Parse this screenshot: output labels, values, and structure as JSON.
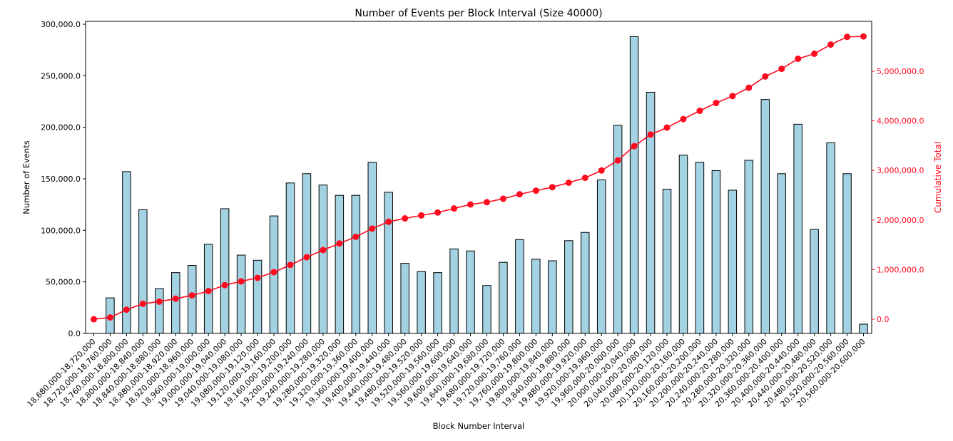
{
  "chart_data": {
    "type": "bar",
    "title": "Number of Events per Block Interval (Size 40000)",
    "xlabel": "Block Number Interval",
    "ylabel": "Number of Events",
    "y2label": "Cumulative Total",
    "ylim": [
      0,
      302800
    ],
    "y2lim": [
      -287000,
      6006000
    ],
    "yticks": [
      "0.0",
      "50,000.0",
      "100,000.0",
      "150,000.0",
      "200,000.0",
      "250,000.0",
      "300,000.0"
    ],
    "y2ticks": [
      "0.0",
      "1,000,000.0",
      "2,000,000.0",
      "3,000,000.0",
      "4,000,000.0",
      "5,000,000.0"
    ],
    "grid": false,
    "colors": {
      "bar": "#a3d2e2",
      "bar_edge": "#000000",
      "line": "#ff0a1e",
      "y2_axis": "#ff0a1e"
    },
    "categories": [
      "18,680,000-18,720,000",
      "18,720,000-18,760,000",
      "18,760,000-18,800,000",
      "18,800,000-18,840,000",
      "18,840,000-18,880,000",
      "18,880,000-18,920,000",
      "18,920,000-18,960,000",
      "18,960,000-19,000,000",
      "19,000,000-19,040,000",
      "19,040,000-19,080,000",
      "19,080,000-19,120,000",
      "19,120,000-19,160,000",
      "19,160,000-19,200,000",
      "19,200,000-19,240,000",
      "19,240,000-19,280,000",
      "19,280,000-19,320,000",
      "19,320,000-19,360,000",
      "19,360,000-19,400,000",
      "19,400,000-19,440,000",
      "19,440,000-19,480,000",
      "19,480,000-19,520,000",
      "19,520,000-19,560,000",
      "19,560,000-19,600,000",
      "19,600,000-19,640,000",
      "19,640,000-19,680,000",
      "19,680,000-19,720,000",
      "19,720,000-19,760,000",
      "19,760,000-19,800,000",
      "19,800,000-19,840,000",
      "19,840,000-19,880,000",
      "19,880,000-19,920,000",
      "19,920,000-19,960,000",
      "19,960,000-20,000,000",
      "20,000,000-20,040,000",
      "20,040,000-20,080,000",
      "20,080,000-20,120,000",
      "20,120,000-20,160,000",
      "20,160,000-20,200,000",
      "20,200,000-20,240,000",
      "20,240,000-20,280,000",
      "20,280,000-20,320,000",
      "20,320,000-20,360,000",
      "20,360,000-20,400,000",
      "20,400,000-20,440,000",
      "20,440,000-20,480,000",
      "20,480,000-20,520,000",
      "20,520,000-20,560,000",
      "20,560,000-20,600,000"
    ],
    "series": [
      {
        "type": "bar",
        "axis": "left",
        "values": [
          0,
          34500,
          157000,
          120000,
          43500,
          59000,
          66000,
          86500,
          121000,
          76000,
          71000,
          114000,
          146000,
          155000,
          144000,
          134000,
          134000,
          166000,
          137000,
          68000,
          60000,
          59000,
          82000,
          80000,
          46500,
          69000,
          91000,
          72000,
          70500,
          90000,
          98000,
          149000,
          202000,
          288000,
          234000,
          140000,
          173000,
          166000,
          158000,
          139000,
          168000,
          227000,
          155000,
          203000,
          101000,
          185000,
          155000,
          9000
        ]
      },
      {
        "type": "line",
        "axis": "right",
        "marker": "circle",
        "values": [
          0,
          34500,
          191500,
          311500,
          355000,
          414000,
          480000,
          566500,
          687500,
          763500,
          834500,
          948500,
          1094500,
          1249500,
          1393500,
          1527500,
          1661500,
          1827500,
          1964500,
          2032500,
          2092500,
          2151500,
          2233500,
          2313500,
          2360000,
          2429000,
          2520000,
          2592000,
          2662500,
          2752500,
          2850500,
          2999500,
          3201500,
          3489500,
          3723500,
          3863500,
          4036500,
          4202500,
          4360500,
          4499500,
          4667500,
          4894500,
          5049500,
          5252500,
          5353500,
          5538500,
          5693500,
          5702500
        ]
      }
    ]
  }
}
